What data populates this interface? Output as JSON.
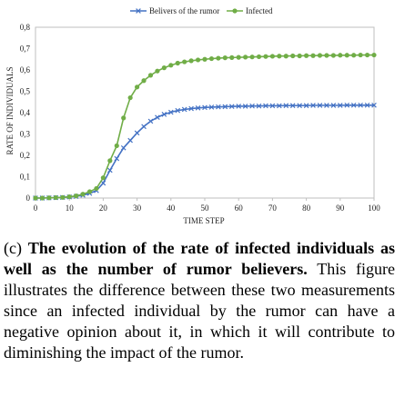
{
  "chart_data": {
    "type": "line",
    "xlabel": "TIME STEP",
    "ylabel": "RATE OF INDIVIDUALS",
    "xlim": [
      0,
      100
    ],
    "ylim": [
      0,
      0.8
    ],
    "x_ticks": [
      "0",
      "10",
      "20",
      "30",
      "40",
      "50",
      "60",
      "70",
      "80",
      "90",
      "100"
    ],
    "y_ticks": [
      "0",
      "0,1",
      "0,2",
      "0,3",
      "0,4",
      "0,5",
      "0,6",
      "0,7",
      "0,8"
    ],
    "legend_position": "top-center",
    "grid": false,
    "x": [
      0,
      2,
      4,
      6,
      8,
      10,
      12,
      14,
      16,
      18,
      20,
      22,
      24,
      26,
      28,
      30,
      32,
      34,
      36,
      38,
      40,
      42,
      44,
      46,
      48,
      50,
      52,
      54,
      56,
      58,
      60,
      62,
      64,
      66,
      68,
      70,
      72,
      74,
      76,
      78,
      80,
      82,
      84,
      86,
      88,
      90,
      92,
      94,
      96,
      98,
      100
    ],
    "series": [
      {
        "name": "Belivers of the rumor",
        "color": "#4472C4",
        "marker": "x",
        "values": [
          0,
          0,
          0.001,
          0.002,
          0.003,
          0.005,
          0.008,
          0.013,
          0.022,
          0.035,
          0.07,
          0.13,
          0.185,
          0.235,
          0.27,
          0.305,
          0.335,
          0.36,
          0.378,
          0.392,
          0.402,
          0.41,
          0.415,
          0.419,
          0.422,
          0.424,
          0.426,
          0.427,
          0.428,
          0.429,
          0.43,
          0.43,
          0.431,
          0.431,
          0.432,
          0.432,
          0.432,
          0.433,
          0.433,
          0.433,
          0.433,
          0.434,
          0.434,
          0.434,
          0.434,
          0.434,
          0.435,
          0.435,
          0.435,
          0.435,
          0.435
        ]
      },
      {
        "name": "Infected",
        "color": "#70AD47",
        "marker": "circle",
        "values": [
          0,
          0,
          0.001,
          0.002,
          0.003,
          0.006,
          0.01,
          0.018,
          0.03,
          0.045,
          0.095,
          0.175,
          0.245,
          0.375,
          0.47,
          0.52,
          0.55,
          0.575,
          0.595,
          0.61,
          0.622,
          0.632,
          0.638,
          0.643,
          0.647,
          0.65,
          0.653,
          0.655,
          0.657,
          0.658,
          0.659,
          0.66,
          0.661,
          0.662,
          0.663,
          0.664,
          0.665,
          0.665,
          0.666,
          0.666,
          0.667,
          0.667,
          0.668,
          0.668,
          0.668,
          0.669,
          0.669,
          0.669,
          0.67,
          0.67,
          0.67
        ]
      }
    ]
  },
  "caption": {
    "label": "(c)",
    "bold": "The evolution of the rate of infected individuals as well as the number of rumor believers.",
    "text": "This figure illustrates the difference between these two measurements since an infected individual by the rumor can have a negative opinion about it, in which it will contribute to diminishing the impact of the rumor."
  }
}
